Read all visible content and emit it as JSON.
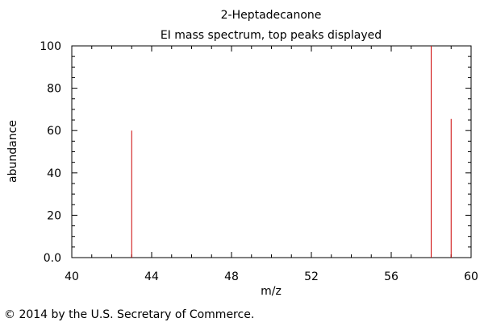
{
  "chart_data": {
    "type": "bar",
    "title": "2-Heptadecanone",
    "subtitle": "EI mass spectrum, top peaks displayed",
    "xlabel": "m/z",
    "ylabel": "abundance",
    "xlim": [
      40,
      60
    ],
    "ylim": [
      0,
      100
    ],
    "x_ticks": [
      "40",
      "44",
      "48",
      "52",
      "56",
      "60"
    ],
    "y_ticks": [
      "0.0",
      "20",
      "40",
      "60",
      "80",
      "100"
    ],
    "grid": false,
    "legend": "none",
    "series": [
      {
        "x": [
          43,
          58,
          59
        ],
        "values": [
          60,
          100,
          65.5
        ],
        "color": "#cc0000"
      }
    ]
  },
  "footer": {
    "copyright": "© 2014 by the U.S. Secretary of Commerce."
  }
}
